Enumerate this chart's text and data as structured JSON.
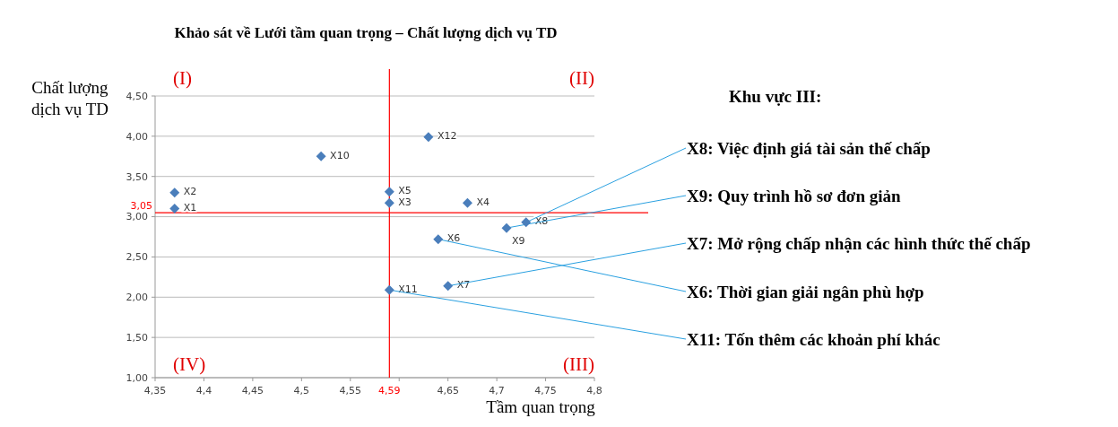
{
  "chart_data": {
    "type": "scatter",
    "title": "Khảo sát về Lưới tầm quan trọng – Chất lượng dịch vụ TD",
    "xlabel": "Tầm quan trọng",
    "ylabel": "Chất lượng dịch vụ TD",
    "x": [
      4.37,
      4.37,
      4.59,
      4.67,
      4.59,
      4.64,
      4.65,
      4.73,
      4.71,
      4.52,
      4.59,
      4.63
    ],
    "values": [
      3.1,
      3.3,
      3.17,
      3.17,
      3.31,
      2.72,
      2.14,
      2.93,
      2.86,
      3.75,
      2.09,
      3.99
    ],
    "color": "#4a7ebb",
    "marker": "diamond",
    "grid": "y",
    "xlim": [
      4.35,
      4.8
    ],
    "xticks": [
      {
        "value": 4.35,
        "label": "4,35"
      },
      {
        "value": 4.4,
        "label": "4,4"
      },
      {
        "value": 4.45,
        "label": "4,45"
      },
      {
        "value": 4.5,
        "label": "4,5"
      },
      {
        "value": 4.55,
        "label": "4,55"
      },
      {
        "value": 4.6,
        "label": null
      },
      {
        "value": 4.65,
        "label": "4,65"
      },
      {
        "value": 4.7,
        "label": "4,7"
      },
      {
        "value": 4.75,
        "label": "4,75"
      },
      {
        "value": 4.8,
        "label": "4,8"
      }
    ],
    "ylim": [
      1,
      4.5
    ],
    "yticks": [
      {
        "value": 1,
        "label": "1,00"
      },
      {
        "value": 1.5,
        "label": "1,50"
      },
      {
        "value": 2,
        "label": "2,00"
      },
      {
        "value": 2.5,
        "label": "2,50"
      },
      {
        "value": 3,
        "label": "3,00"
      },
      {
        "value": 3.5,
        "label": "3,50"
      },
      {
        "value": 4,
        "label": "4,00"
      },
      {
        "value": 4.5,
        "label": "4,50"
      }
    ],
    "ref_lines": [
      {
        "axis": "x",
        "value": 4.59,
        "label": "4,59",
        "color": "#ff0000"
      },
      {
        "axis": "y",
        "value": 3.05,
        "label": "3,05",
        "color": "#ff0000"
      }
    ],
    "annotations": [
      {
        "text": "X1",
        "x": 4.37,
        "y": 3.1
      },
      {
        "text": "X2",
        "x": 4.37,
        "y": 3.3
      },
      {
        "text": "X3",
        "x": 4.59,
        "y": 3.17
      },
      {
        "text": "X4",
        "x": 4.67,
        "y": 3.17
      },
      {
        "text": "X5",
        "x": 4.59,
        "y": 3.31
      },
      {
        "text": "X6",
        "x": 4.64,
        "y": 2.72
      },
      {
        "text": "X7",
        "x": 4.65,
        "y": 2.14
      },
      {
        "text": "X8",
        "x": 4.73,
        "y": 2.93
      },
      {
        "text": "X9",
        "x": 4.71,
        "y": 2.86
      },
      {
        "text": "X10",
        "x": 4.52,
        "y": 3.75
      },
      {
        "text": "X11",
        "x": 4.59,
        "y": 2.09
      },
      {
        "text": "X12",
        "x": 4.63,
        "y": 3.99
      },
      {
        "text": "X8: Việc định giá tài sản thế chấp",
        "x": 4.73,
        "y": 2.93
      },
      {
        "text": "X9: Quy trình hồ sơ đơn giản",
        "x": 4.71,
        "y": 2.86
      },
      {
        "text": "X7: Mở rộng chấp nhận các hình thức thế chấp",
        "x": 4.65,
        "y": 2.14
      },
      {
        "text": "X6: Thời gian giải ngân phù hợp",
        "x": 4.64,
        "y": 2.72
      },
      {
        "text": "X11: Tốn thêm các khoản phí khác",
        "x": 4.59,
        "y": 2.09
      },
      "(I)",
      "(II)",
      "(IV)",
      "(III)",
      "Khu vực III:"
    ]
  }
}
